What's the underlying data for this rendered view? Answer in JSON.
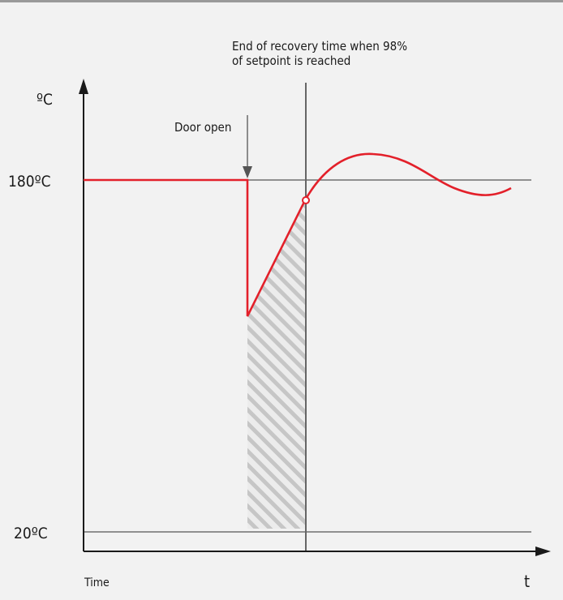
{
  "diagram": {
    "y_unit_label": "ºC",
    "x_unit_label": "t",
    "x_axis_caption": "Time",
    "setpoint_label": "180ºC",
    "baseline_label": "20ºC",
    "door_open_label": "Door open",
    "recovery_annotation_line1": "End of recovery time when 98%",
    "recovery_annotation_line2": "of setpoint is reached",
    "colors": {
      "curve": "#e3202a",
      "axis": "#1a1a1a",
      "reference_lines": "#555555",
      "hatch": "#c8c8c8",
      "background": "#f2f2f2"
    }
  }
}
